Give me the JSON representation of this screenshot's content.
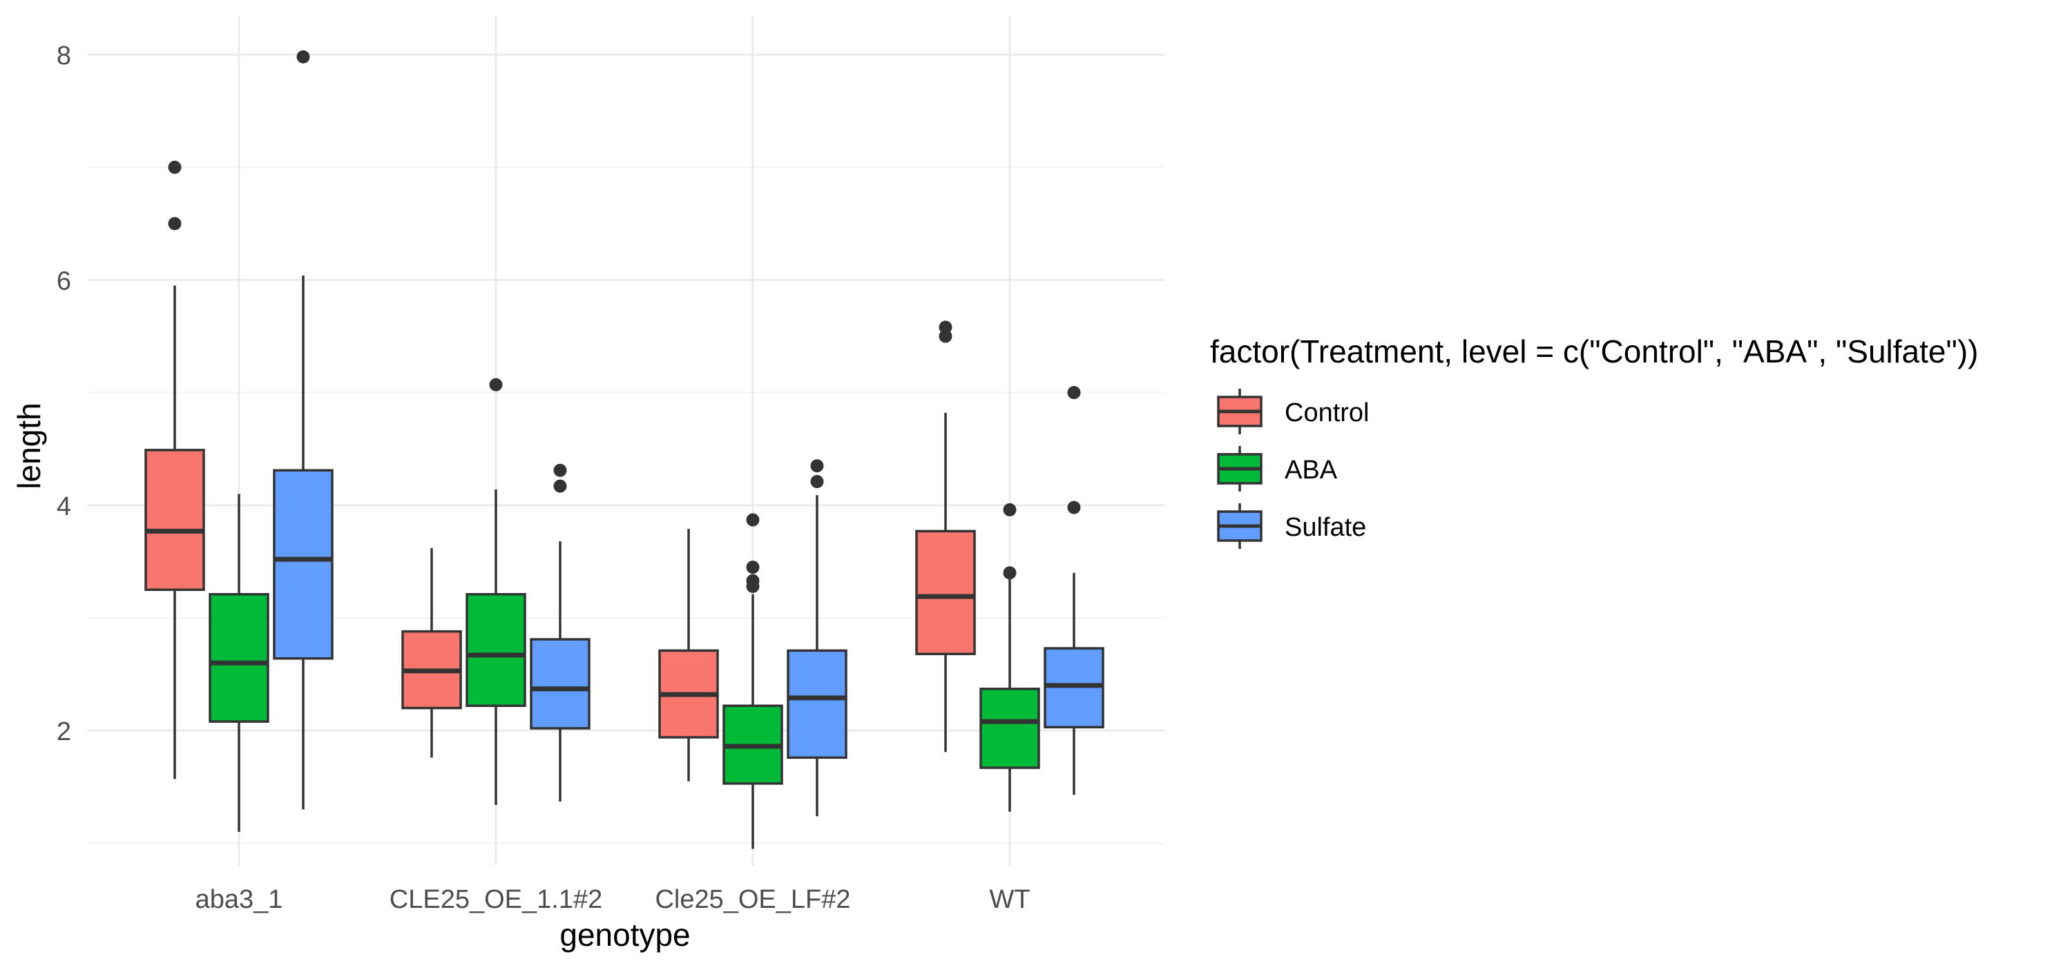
{
  "colors": {
    "background": "#ffffff",
    "grid_major": "#ebebeb",
    "grid_minor": "#f3f3f3",
    "box_stroke": "#333333",
    "tick_text": "#4d4d4d",
    "axis_title": "#000000"
  },
  "chart_data": {
    "type": "boxplot",
    "title": "",
    "xlabel": "genotype",
    "ylabel": "length",
    "ylim": [
      0.8,
      8.35
    ],
    "yticks": [
      2,
      4,
      6,
      8
    ],
    "grid": true,
    "legend_position": "right",
    "legend_title": "factor(Treatment, level = c(\"Control\", \"ABA\", \"Sulfate\"))",
    "categories": [
      "aba3_1",
      "CLE25_OE_1.1#2",
      "Cle25_OE_LF#2",
      "WT"
    ],
    "series": [
      {
        "name": "Control",
        "color": "#F8766D",
        "boxes": [
          {
            "whisker_low": 1.57,
            "q1": 3.25,
            "median": 3.77,
            "q3": 4.49,
            "whisker_high": 5.95,
            "outliers": [
              6.5,
              7.0
            ]
          },
          {
            "whisker_low": 1.76,
            "q1": 2.2,
            "median": 2.53,
            "q3": 2.88,
            "whisker_high": 3.62,
            "outliers": []
          },
          {
            "whisker_low": 1.55,
            "q1": 1.94,
            "median": 2.32,
            "q3": 2.71,
            "whisker_high": 3.79,
            "outliers": []
          },
          {
            "whisker_low": 1.81,
            "q1": 2.68,
            "median": 3.19,
            "q3": 3.77,
            "whisker_high": 4.82,
            "outliers": [
              5.5,
              5.58
            ]
          }
        ]
      },
      {
        "name": "ABA",
        "color": "#00BA38",
        "boxes": [
          {
            "whisker_low": 1.1,
            "q1": 2.08,
            "median": 2.6,
            "q3": 3.21,
            "whisker_high": 4.1,
            "outliers": []
          },
          {
            "whisker_low": 1.34,
            "q1": 2.22,
            "median": 2.67,
            "q3": 3.21,
            "whisker_high": 4.14,
            "outliers": [
              5.07
            ]
          },
          {
            "whisker_low": 0.95,
            "q1": 1.53,
            "median": 1.86,
            "q3": 2.22,
            "whisker_high": 3.21,
            "outliers": [
              3.28,
              3.33,
              3.45,
              3.87
            ]
          },
          {
            "whisker_low": 1.28,
            "q1": 1.67,
            "median": 2.08,
            "q3": 2.37,
            "whisker_high": 3.36,
            "outliers": [
              3.4,
              3.96
            ]
          }
        ]
      },
      {
        "name": "Sulfate",
        "color": "#619CFF",
        "boxes": [
          {
            "whisker_low": 1.3,
            "q1": 2.64,
            "median": 3.52,
            "q3": 4.31,
            "whisker_high": 6.04,
            "outliers": [
              7.98
            ]
          },
          {
            "whisker_low": 1.37,
            "q1": 2.02,
            "median": 2.37,
            "q3": 2.81,
            "whisker_high": 3.68,
            "outliers": [
              4.17,
              4.31
            ]
          },
          {
            "whisker_low": 1.24,
            "q1": 1.76,
            "median": 2.29,
            "q3": 2.71,
            "whisker_high": 4.09,
            "outliers": [
              4.21,
              4.35
            ]
          },
          {
            "whisker_low": 1.43,
            "q1": 2.03,
            "median": 2.4,
            "q3": 2.73,
            "whisker_high": 3.4,
            "outliers": [
              3.98,
              5.0
            ]
          }
        ]
      }
    ]
  }
}
